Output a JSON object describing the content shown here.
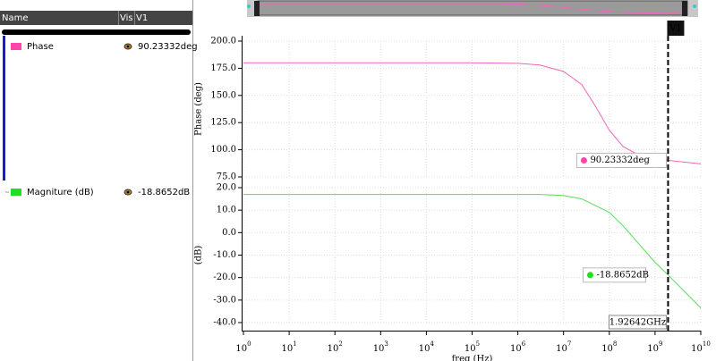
{
  "panel": {
    "columns": [
      "Name",
      "Vis",
      "V1"
    ],
    "items": [
      {
        "name": "Phase",
        "color": "#ff44aa",
        "value": "90.23332deg"
      },
      {
        "name": "Magniture (dB)",
        "color": "#22dd22",
        "value": "-18.8652dB"
      }
    ]
  },
  "marker": {
    "name": "V1",
    "x": 1926420000,
    "x_label": "1.92642GHz"
  },
  "chart_data": [
    {
      "type": "line",
      "y_label": "Phase (deg)",
      "log_x": true,
      "grid": true,
      "xlim": [
        1,
        10000000000
      ],
      "x": [
        1,
        100000,
        1000000,
        3000000,
        10000000,
        25000000,
        50000000,
        100000000,
        200000000,
        400000000,
        1000000000,
        1926420000,
        10000000000
      ],
      "series": [
        {
          "name": "Phase",
          "color": "#ee66bb",
          "values": [
            180,
            180,
            179.5,
            178,
            172,
            160,
            140,
            118,
            103,
            96,
            93,
            90.23332,
            87
          ]
        }
      ],
      "ylim": [
        75,
        200
      ],
      "yticks": [
        {
          "value": 200,
          "label": "200.0"
        },
        {
          "value": 175,
          "label": "175.0"
        },
        {
          "value": 150,
          "label": "150.0"
        },
        {
          "value": 125,
          "label": "125.0"
        },
        {
          "value": 100,
          "label": "100.0"
        },
        {
          "value": 75,
          "label": "75.0"
        }
      ]
    },
    {
      "type": "line",
      "y_label": "(dB)",
      "x_label": "freq (Hz)",
      "log_x": true,
      "grid": true,
      "xlim": [
        1,
        10000000000
      ],
      "xticks": [
        {
          "value": 1,
          "label": "10",
          "exp": "0"
        },
        {
          "value": 10,
          "label": "10",
          "exp": "1"
        },
        {
          "value": 100,
          "label": "10",
          "exp": "2"
        },
        {
          "value": 1000,
          "label": "10",
          "exp": "3"
        },
        {
          "value": 10000,
          "label": "10",
          "exp": "4"
        },
        {
          "value": 100000,
          "label": "10",
          "exp": "5"
        },
        {
          "value": 1000000,
          "label": "10",
          "exp": "6"
        },
        {
          "value": 10000000,
          "label": "10",
          "exp": "7"
        },
        {
          "value": 100000000,
          "label": "10",
          "exp": "8"
        },
        {
          "value": 1000000000,
          "label": "10",
          "exp": "9"
        },
        {
          "value": 10000000000,
          "label": "10",
          "exp": "10"
        }
      ],
      "x": [
        1,
        100000,
        1000000,
        3000000,
        10000000,
        25000000,
        50000000,
        100000000,
        200000000,
        400000000,
        1000000000,
        1926420000,
        10000000000
      ],
      "series": [
        {
          "name": "Magniture (dB)",
          "color": "#55dd55",
          "values": [
            17,
            17,
            17,
            17,
            16.5,
            15,
            12,
            9,
            3,
            -4,
            -13.2,
            -18.8652,
            -33.5
          ]
        }
      ],
      "ylim": [
        -40,
        20
      ],
      "yticks": [
        {
          "value": 20,
          "label": "20.0"
        },
        {
          "value": 10,
          "label": "10.0"
        },
        {
          "value": 0,
          "label": "0.0"
        },
        {
          "value": -10,
          "label": "-10.0"
        },
        {
          "value": -20,
          "label": "-20.0"
        },
        {
          "value": -30,
          "label": "-30.0"
        },
        {
          "value": -40,
          "label": "-40.0"
        }
      ]
    }
  ]
}
